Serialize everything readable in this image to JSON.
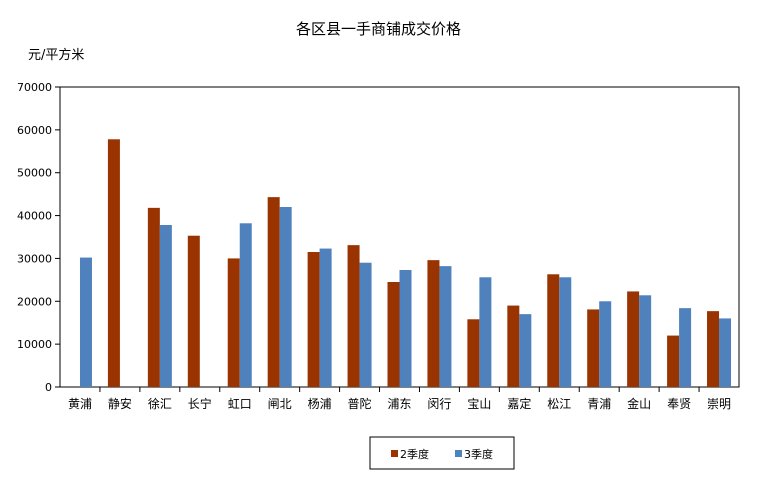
{
  "chart_data": {
    "type": "bar",
    "title": "各区县一手商铺成交价格",
    "ylabel": "元/平方米",
    "xlabel": "",
    "ylim": [
      0,
      70000
    ],
    "yticks": [
      0,
      10000,
      20000,
      30000,
      40000,
      50000,
      60000,
      70000
    ],
    "grid": false,
    "legend_position": "bottom-center",
    "categories": [
      "黄浦",
      "静安",
      "徐汇",
      "长宁",
      "虹口",
      "闸北",
      "杨浦",
      "普陀",
      "浦东",
      "闵行",
      "宝山",
      "嘉定",
      "松江",
      "青浦",
      "金山",
      "奉贤",
      "崇明"
    ],
    "series": [
      {
        "name": "2季度",
        "color": "#993300",
        "values": [
          null,
          57800,
          41800,
          35300,
          30000,
          44300,
          31500,
          33100,
          24500,
          29600,
          15800,
          19000,
          26300,
          18100,
          22300,
          12000,
          17700
        ]
      },
      {
        "name": "3季度",
        "color": "#4f81bd",
        "values": [
          30200,
          null,
          37800,
          null,
          38200,
          42000,
          32300,
          29000,
          27300,
          28200,
          25600,
          17000,
          25600,
          20000,
          21400,
          18400,
          16000
        ]
      }
    ]
  }
}
